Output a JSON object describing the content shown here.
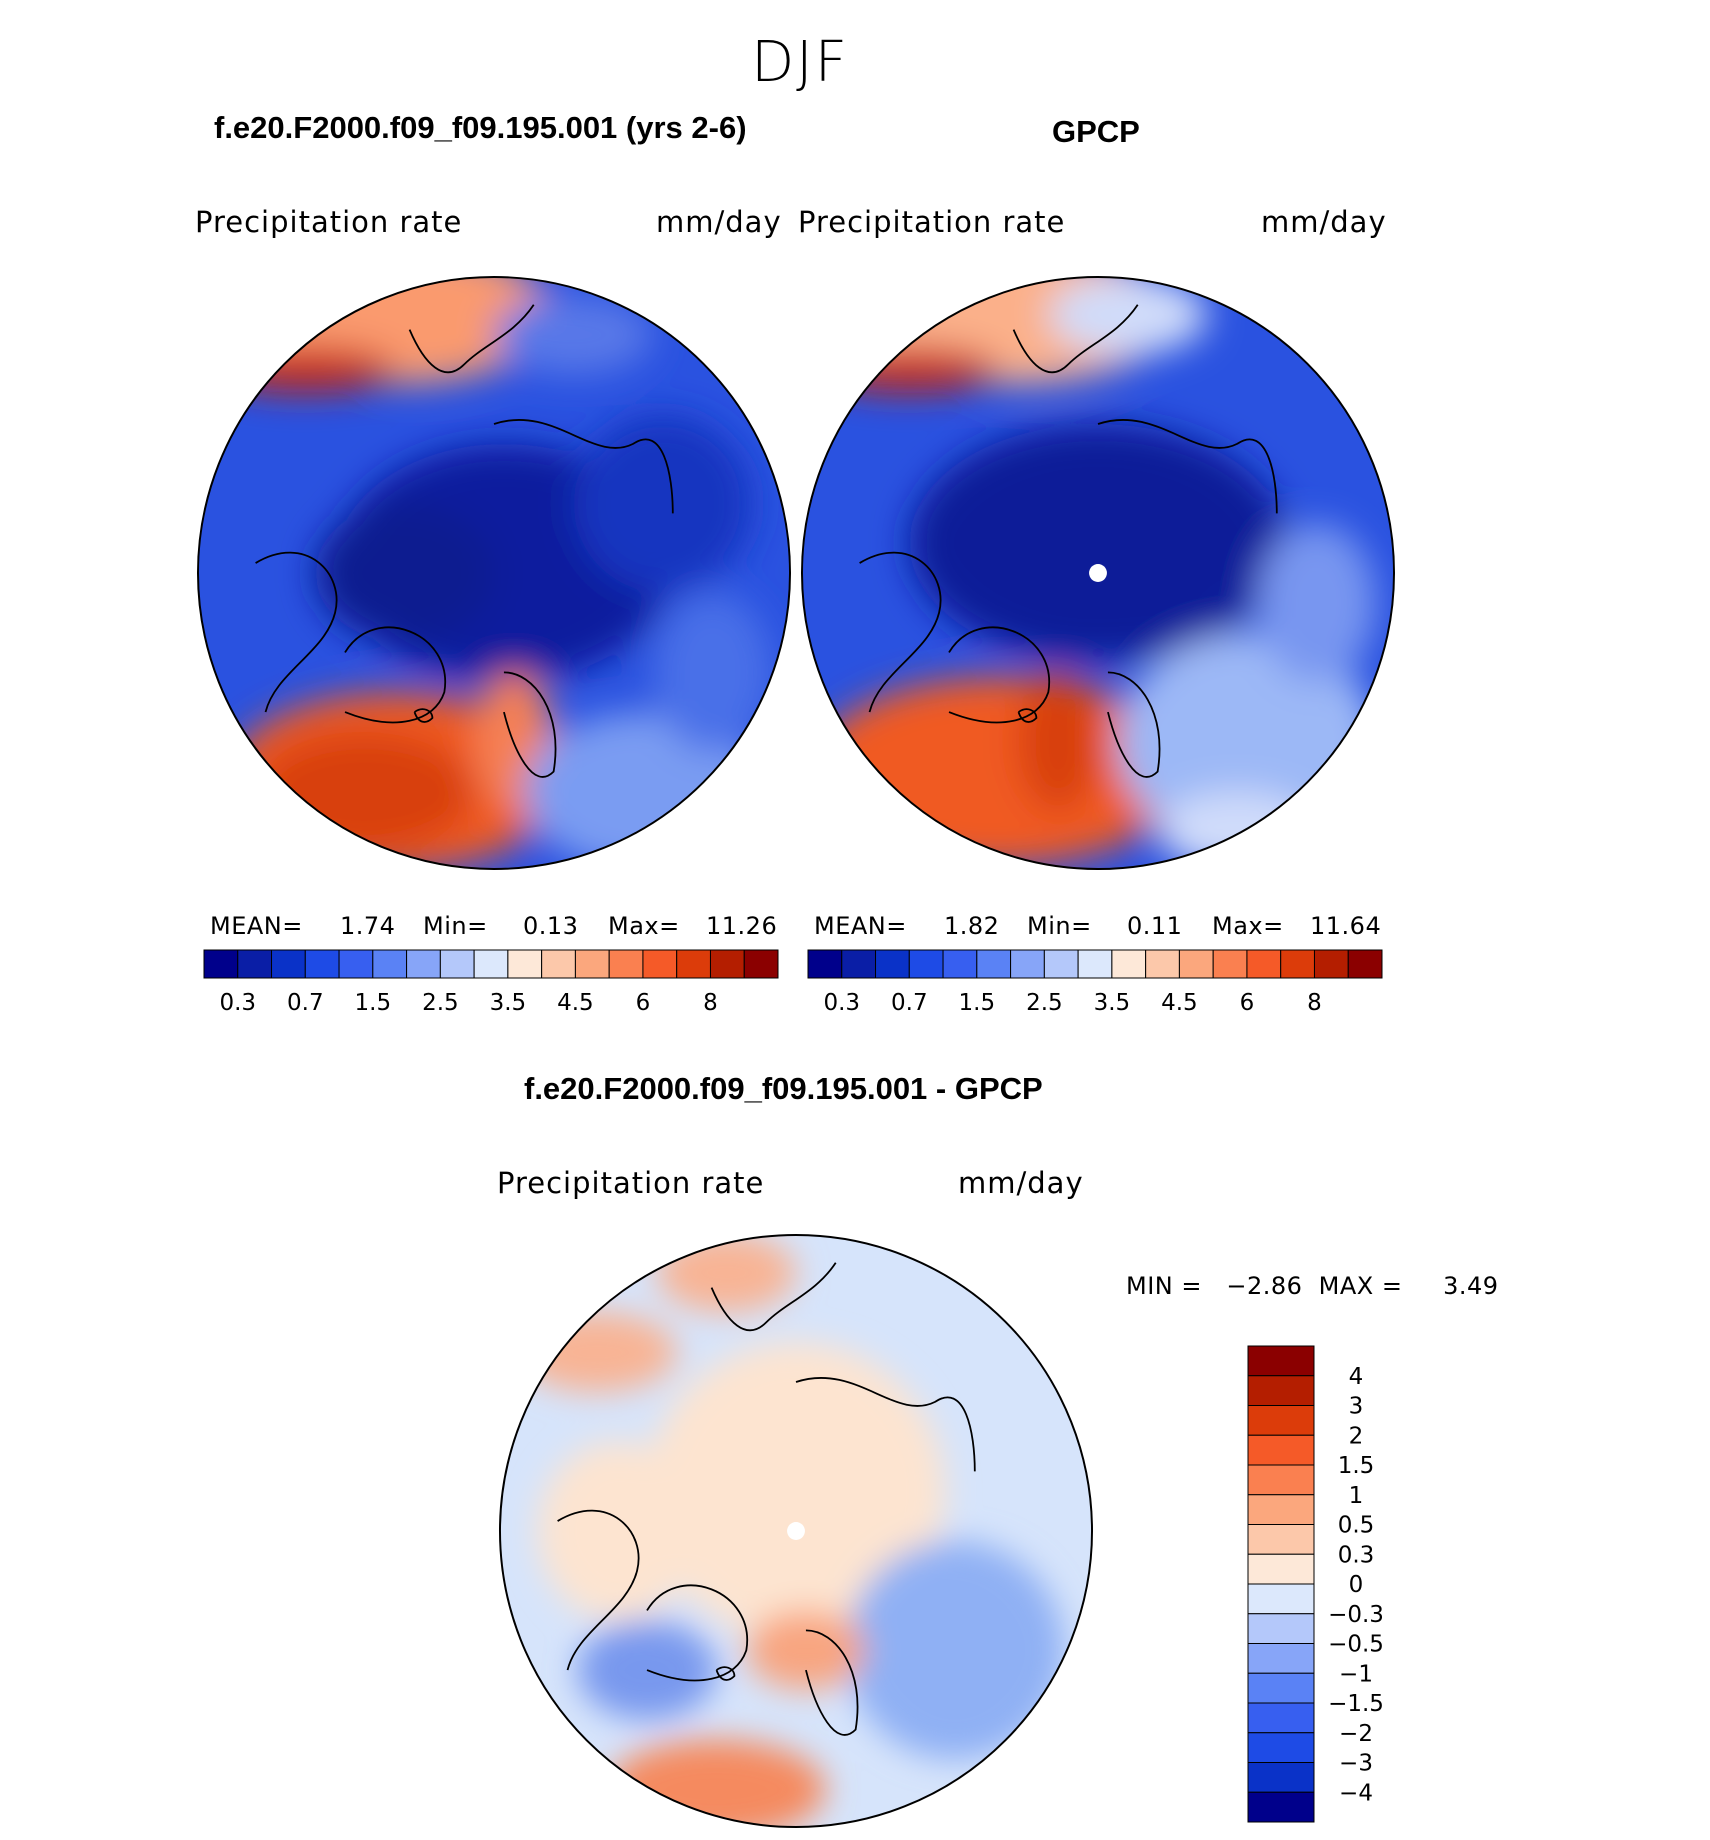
{
  "figure": {
    "season": "DJF"
  },
  "panels": [
    {
      "id": "model",
      "title": "f.e20.F2000.f09_f09.195.001 (yrs 2-6)",
      "left_label": "Precipitation  rate",
      "right_label": "mm/day",
      "stats": {
        "mean_label": "MEAN=",
        "mean": "1.74",
        "min_label": "Min=",
        "min": "0.13",
        "max_label": "Max=",
        "max": "11.26"
      }
    },
    {
      "id": "obs",
      "title": "GPCP",
      "left_label": "Precipitation  rate",
      "right_label": "mm/day",
      "stats": {
        "mean_label": "MEAN=",
        "mean": "1.82",
        "min_label": "Min=",
        "min": "0.11",
        "max_label": "Max=",
        "max": "11.64"
      }
    },
    {
      "id": "diff",
      "title": "f.e20.F2000.f09_f09.195.001 - GPCP",
      "left_label": "Precipitation  rate",
      "right_label": "mm/day",
      "stats": {
        "text": "MIN =   −2.86  MAX =     3.49"
      }
    }
  ],
  "chart_data": [
    {
      "type": "heatmap",
      "projection": "north-polar-stereographic",
      "title": "f.e20.F2000.f09_f09.195.001 (yrs 2-6)",
      "variable": "Precipitation rate",
      "units": "mm/day",
      "mean": 1.74,
      "min": 0.13,
      "max": 11.26,
      "colorbar": {
        "orientation": "horizontal",
        "levels": [
          0.2,
          0.3,
          0.5,
          0.7,
          1,
          1.5,
          2,
          2.5,
          3,
          3.5,
          4,
          4.5,
          5,
          6,
          7,
          8
        ],
        "tick_labels": [
          "0.3",
          "0.7",
          "1.5",
          "2.5",
          "3.5",
          "4.5",
          "6",
          "8"
        ],
        "colors": [
          "#00008b",
          "#0a1ea6",
          "#0a32c8",
          "#1e4be6",
          "#375ff0",
          "#5a82f5",
          "#87a5f8",
          "#b4c8fa",
          "#dce8fc",
          "#fde8d8",
          "#fcc8aa",
          "#fba77d",
          "#fa8050",
          "#f55a28",
          "#dc3c0a",
          "#b41e00",
          "#8b0000"
        ]
      }
    },
    {
      "type": "heatmap",
      "projection": "north-polar-stereographic",
      "title": "GPCP",
      "variable": "Precipitation rate",
      "units": "mm/day",
      "mean": 1.82,
      "min": 0.11,
      "max": 11.64,
      "colorbar": {
        "orientation": "horizontal",
        "levels": [
          0.2,
          0.3,
          0.5,
          0.7,
          1,
          1.5,
          2,
          2.5,
          3,
          3.5,
          4,
          4.5,
          5,
          6,
          7,
          8
        ],
        "tick_labels": [
          "0.3",
          "0.7",
          "1.5",
          "2.5",
          "3.5",
          "4.5",
          "6",
          "8"
        ],
        "colors": [
          "#00008b",
          "#0a1ea6",
          "#0a32c8",
          "#1e4be6",
          "#375ff0",
          "#5a82f5",
          "#87a5f8",
          "#b4c8fa",
          "#dce8fc",
          "#fde8d8",
          "#fcc8aa",
          "#fba77d",
          "#fa8050",
          "#f55a28",
          "#dc3c0a",
          "#b41e00",
          "#8b0000"
        ]
      }
    },
    {
      "type": "heatmap",
      "projection": "north-polar-stereographic",
      "title": "f.e20.F2000.f09_f09.195.001 - GPCP",
      "variable": "Precipitation rate",
      "units": "mm/day",
      "min": -2.86,
      "max": 3.49,
      "colorbar": {
        "orientation": "vertical",
        "tick_labels_top_to_bottom": [
          "4",
          "3",
          "2",
          "1.5",
          "1",
          "0.5",
          "0.3",
          "0",
          "−0.3",
          "−0.5",
          "−1",
          "−1.5",
          "−2",
          "−3",
          "−4"
        ],
        "colors_top_to_bottom": [
          "#8b0000",
          "#b41e00",
          "#dc3c0a",
          "#f55a28",
          "#fa8050",
          "#fba77d",
          "#fcc8aa",
          "#fde8d8",
          "#dce8fc",
          "#b4c8fa",
          "#87a5f8",
          "#5a82f5",
          "#375ff0",
          "#1e4be6",
          "#0a32c8",
          "#00008b"
        ]
      }
    }
  ]
}
